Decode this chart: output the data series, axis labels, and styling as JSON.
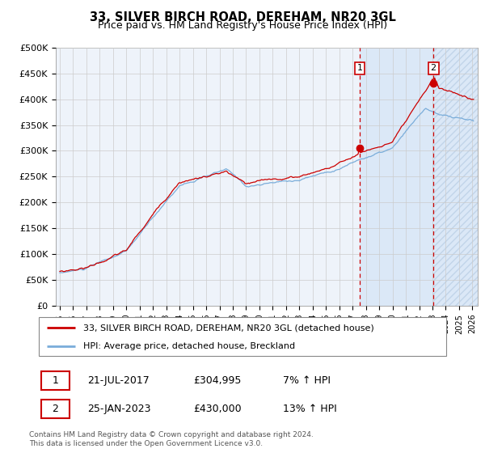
{
  "title": "33, SILVER BIRCH ROAD, DEREHAM, NR20 3GL",
  "subtitle": "Price paid vs. HM Land Registry's House Price Index (HPI)",
  "legend_line1": "33, SILVER BIRCH ROAD, DEREHAM, NR20 3GL (detached house)",
  "legend_line2": "HPI: Average price, detached house, Breckland",
  "annotation1_date": "21-JUL-2017",
  "annotation1_price": "£304,995",
  "annotation1_hpi": "7% ↑ HPI",
  "annotation2_date": "25-JAN-2023",
  "annotation2_price": "£430,000",
  "annotation2_hpi": "13% ↑ HPI",
  "sale1_year": 2017.54,
  "sale1_price": 304995,
  "sale2_year": 2023.07,
  "sale2_price": 430000,
  "ylim": [
    0,
    500000
  ],
  "yticks": [
    0,
    50000,
    100000,
    150000,
    200000,
    250000,
    300000,
    350000,
    400000,
    450000,
    500000
  ],
  "start_year": 1995,
  "end_year": 2026,
  "line_color_red": "#cc0000",
  "line_color_blue": "#7aadda",
  "fill_color": "#ddeeff",
  "bg_color": "#eef3fa",
  "grid_color": "#cccccc",
  "footer": "Contains HM Land Registry data © Crown copyright and database right 2024.\nThis data is licensed under the Open Government Licence v3.0."
}
